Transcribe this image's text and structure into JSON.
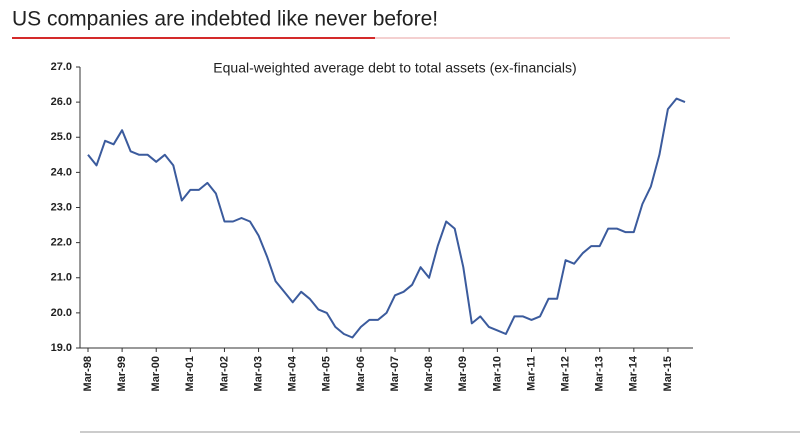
{
  "chart_data": {
    "type": "line",
    "title": "US companies are indebted like never before!",
    "subtitle": "Equal-weighted average debt to total assets (ex-financials)",
    "categories": [
      "Mar-98",
      null,
      null,
      null,
      "Mar-99",
      null,
      null,
      null,
      "Mar-00",
      null,
      null,
      null,
      "Mar-01",
      null,
      null,
      null,
      "Mar-02",
      null,
      null,
      null,
      "Mar-03",
      null,
      null,
      null,
      "Mar-04",
      null,
      null,
      null,
      "Mar-05",
      null,
      null,
      null,
      "Mar-06",
      null,
      null,
      null,
      "Mar-07",
      null,
      null,
      null,
      "Mar-08",
      null,
      null,
      null,
      "Mar-09",
      null,
      null,
      null,
      "Mar-10",
      null,
      null,
      null,
      "Mar-11",
      null,
      null,
      null,
      "Mar-12",
      null,
      null,
      null,
      "Mar-13",
      null,
      null,
      null,
      "Mar-14",
      null,
      null,
      null,
      "Mar-15",
      null,
      null
    ],
    "series": [
      {
        "name": "Equal-weighted average debt to total assets",
        "color": "#3b5b9d",
        "values": [
          24.5,
          24.2,
          24.9,
          24.8,
          25.2,
          24.6,
          24.5,
          24.5,
          24.3,
          24.5,
          24.2,
          23.2,
          23.5,
          23.5,
          23.7,
          23.4,
          22.6,
          22.6,
          22.7,
          22.6,
          22.2,
          21.6,
          20.9,
          20.6,
          20.3,
          20.6,
          20.4,
          20.1,
          20.0,
          19.6,
          19.4,
          19.3,
          19.6,
          19.8,
          19.8,
          20.0,
          20.5,
          20.6,
          20.8,
          21.3,
          21.0,
          21.9,
          22.6,
          22.4,
          21.3,
          19.7,
          19.9,
          19.6,
          19.5,
          19.4,
          19.9,
          19.9,
          19.8,
          19.9,
          20.4,
          20.4,
          21.5,
          21.4,
          21.7,
          21.9,
          21.9,
          22.4,
          22.4,
          22.3,
          22.3,
          23.1,
          23.6,
          24.5,
          25.8,
          26.1,
          26.0
        ]
      }
    ],
    "ylim": [
      19,
      27
    ],
    "yticks": [
      {
        "value": 19,
        "label": "19.0"
      },
      {
        "value": 20,
        "label": "20.0"
      },
      {
        "value": 21,
        "label": "21.0"
      },
      {
        "value": 22,
        "label": "22.0"
      },
      {
        "value": 23,
        "label": "23.0"
      },
      {
        "value": 24,
        "label": "24.0"
      },
      {
        "value": 25,
        "label": "25.0"
      },
      {
        "value": 26,
        "label": "26.0"
      },
      {
        "value": 27,
        "label": "27.0"
      }
    ],
    "grid": false
  }
}
